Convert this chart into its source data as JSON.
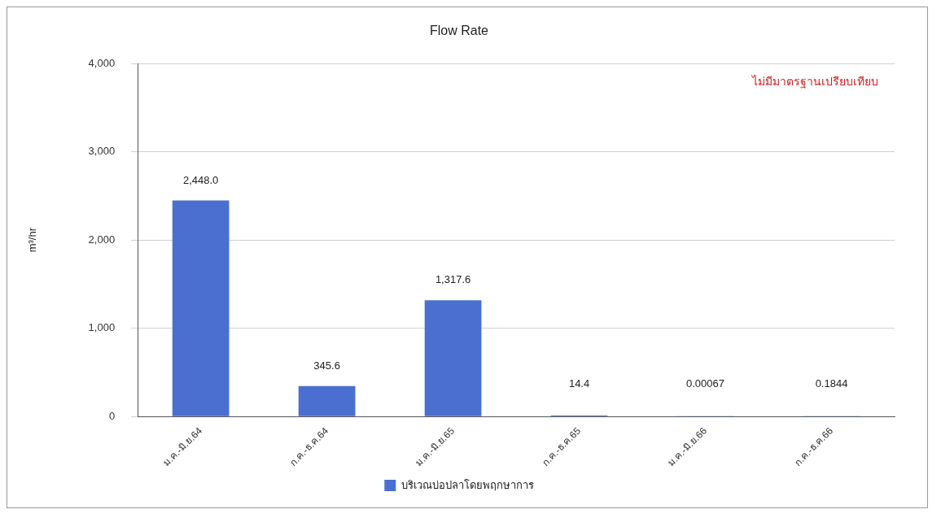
{
  "chart_data": {
    "type": "bar",
    "title": "Flow Rate",
    "ylabel": "m³/hr",
    "categories": [
      "ม.ค.-มิ.ย.64",
      "ก.ค.-ธ.ค.64",
      "ม.ค.-มิ.ย.65",
      "ก.ค.-ธ.ค.65",
      "ม.ค.-มิ.ย.66",
      "ก.ค.-ธ.ค.66"
    ],
    "series": [
      {
        "name": "บริเวณบ่อปลาโดยพฤกษาการ",
        "color": "#4a6fd0",
        "values": [
          2448.0,
          345.6,
          1317.6,
          14.4,
          0.00067,
          0.1844
        ],
        "value_labels": [
          "2,448.0",
          "345.6",
          "1,317.6",
          "14.4",
          "0.00067",
          "0.1844"
        ]
      }
    ],
    "ylim": [
      0,
      4000
    ],
    "yticks": [
      0,
      {
        "value": 1000,
        "label": "1,000"
      },
      {
        "value": 2000,
        "label": "2,000"
      },
      {
        "value": 3000,
        "label": "3,000"
      },
      {
        "value": 4000,
        "label": "4,000"
      }
    ],
    "grid": "y",
    "legend": "bottom",
    "annotations": [
      "ไม่มีมาตรฐานเปรียบเทียบ"
    ]
  }
}
